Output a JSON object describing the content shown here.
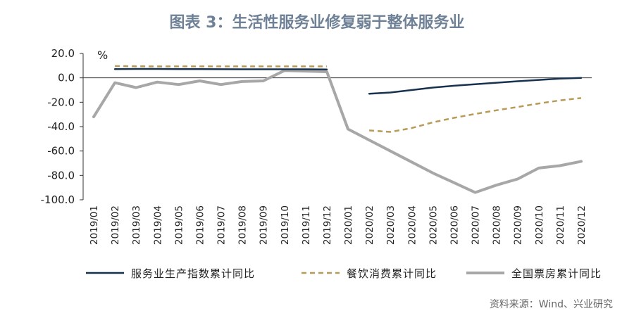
{
  "title": "图表 3：生活性服务业修复弱于整体服务业",
  "source": "资料来源：Wind、兴业研究",
  "colors": {
    "series1": "#17324f",
    "series2": "#b79a55",
    "series3": "#a7a7a7"
  },
  "chart_data": {
    "type": "line",
    "unit": "%",
    "ylim": [
      -100,
      20
    ],
    "yticks": [
      "20.0",
      "0.0",
      "-20.0",
      "-40.0",
      "-60.0",
      "-80.0",
      "-100.0"
    ],
    "ytick_values": [
      20,
      0,
      -20,
      -40,
      -60,
      -80,
      -100
    ],
    "categories": [
      "2019/01",
      "2019/02",
      "2019/03",
      "2019/04",
      "2019/05",
      "2019/06",
      "2019/07",
      "2019/08",
      "2019/09",
      "2019/10",
      "2019/11",
      "2019/12",
      "2020/01",
      "2020/02",
      "2020/03",
      "2020/04",
      "2020/05",
      "2020/06",
      "2020/07",
      "2020/08",
      "2020/09",
      "2020/10",
      "2020/11",
      "2020/12"
    ],
    "legend_position": "bottom",
    "series": [
      {
        "name": "服务业生产指数累计同比",
        "style": "solid",
        "color": "#17324f",
        "values": [
          null,
          7.2,
          7.3,
          7.3,
          7.2,
          7.2,
          7.1,
          7.0,
          7.0,
          7.0,
          7.0,
          6.9,
          null,
          -13.0,
          -12.0,
          -10.0,
          -8.0,
          -6.5,
          -5.2,
          -4.0,
          -2.8,
          -1.7,
          -0.6,
          0.0
        ]
      },
      {
        "name": "餐饮消费累计同比",
        "style": "dashed",
        "color": "#b79a55",
        "values": [
          null,
          9.7,
          9.5,
          9.4,
          9.4,
          9.4,
          9.4,
          9.4,
          9.4,
          9.4,
          9.4,
          9.4,
          null,
          -43.1,
          -44.3,
          -41.2,
          -36.5,
          -32.8,
          -29.6,
          -26.6,
          -23.9,
          -21.0,
          -18.5,
          -16.6
        ]
      },
      {
        "name": "全国票房累计同比",
        "style": "solid",
        "color": "#a7a7a7",
        "values": [
          -32.0,
          -4.0,
          -8.0,
          -3.5,
          -5.5,
          -2.5,
          -5.5,
          -3.0,
          -2.5,
          6.0,
          5.5,
          5.0,
          -42.0,
          -51.0,
          -60.0,
          -69.0,
          -78.0,
          -86.0,
          -94.0,
          -88.0,
          -83.0,
          -74.0,
          -72.0,
          -68.5
        ]
      }
    ]
  }
}
